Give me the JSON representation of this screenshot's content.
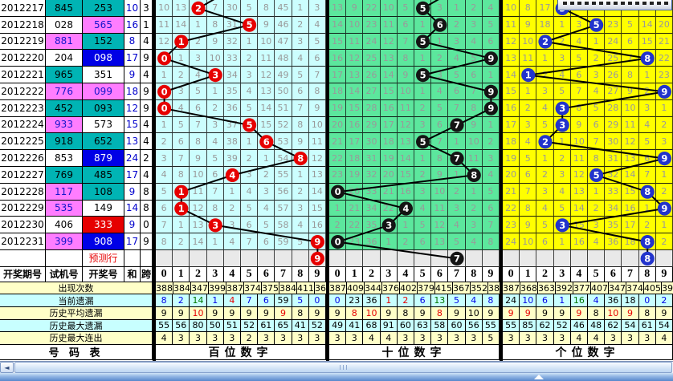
{
  "colors": {
    "teal": "#00B4B4",
    "magenta": "#FF7DFF",
    "blue_cell": "#0000E6",
    "red_cell": "#E60000",
    "grid_bgs": [
      "#CCFEFE",
      "#5CE79D",
      "#FFFF00"
    ],
    "ball_colors": [
      "#E60000",
      "#141414",
      "#2233CC"
    ],
    "stat_yellow": "#FFFFC8",
    "stat_cyan": "#C8FFFF",
    "sum_text": "#0000CC",
    "miss_blue": "#0000E6",
    "miss_red": "#E60000",
    "miss_green": "#007700"
  },
  "left_table": {
    "headers": [
      "开奖期号",
      "试机号",
      "开奖号",
      "和",
      "跨"
    ],
    "prediction_label": "预测行",
    "footer_label": "号 码 表",
    "rows": [
      {
        "period": "2012217",
        "test": "845",
        "test_bg": "teal",
        "test_fg": "black",
        "win": "253",
        "win_bg": "teal",
        "win_fg": "black",
        "sum": "10",
        "span": "3"
      },
      {
        "period": "2012218",
        "test": "028",
        "test_bg": "white",
        "test_fg": "black",
        "win": "565",
        "win_bg": "magenta",
        "win_fg": "blue",
        "sum": "16",
        "span": "1"
      },
      {
        "period": "2012219",
        "test": "881",
        "test_bg": "magenta",
        "test_fg": "blue",
        "win": "152",
        "win_bg": "teal",
        "win_fg": "black",
        "sum": "8",
        "span": "4"
      },
      {
        "period": "2012220",
        "test": "204",
        "test_bg": "white",
        "test_fg": "black",
        "win": "098",
        "win_bg": "blue",
        "win_fg": "white",
        "sum": "17",
        "span": "9"
      },
      {
        "period": "2012221",
        "test": "965",
        "test_bg": "teal",
        "test_fg": "black",
        "win": "351",
        "win_bg": "white",
        "win_fg": "black",
        "sum": "9",
        "span": "4"
      },
      {
        "period": "2012222",
        "test": "776",
        "test_bg": "magenta",
        "test_fg": "blue",
        "win": "099",
        "win_bg": "magenta",
        "win_fg": "blue",
        "sum": "18",
        "span": "9"
      },
      {
        "period": "2012223",
        "test": "452",
        "test_bg": "teal",
        "test_fg": "black",
        "win": "093",
        "win_bg": "teal",
        "win_fg": "black",
        "sum": "12",
        "span": "9"
      },
      {
        "period": "2012224",
        "test": "933",
        "test_bg": "magenta",
        "test_fg": "blue",
        "win": "573",
        "win_bg": "white",
        "win_fg": "black",
        "sum": "15",
        "span": "4"
      },
      {
        "period": "2012225",
        "test": "918",
        "test_bg": "teal",
        "test_fg": "black",
        "win": "652",
        "win_bg": "teal",
        "win_fg": "black",
        "sum": "13",
        "span": "4"
      },
      {
        "period": "2012226",
        "test": "853",
        "test_bg": "white",
        "test_fg": "black",
        "win": "879",
        "win_bg": "blue",
        "win_fg": "white",
        "sum": "24",
        "span": "2"
      },
      {
        "period": "2012227",
        "test": "769",
        "test_bg": "teal",
        "test_fg": "black",
        "win": "485",
        "win_bg": "teal",
        "win_fg": "black",
        "sum": "17",
        "span": "4"
      },
      {
        "period": "2012228",
        "test": "117",
        "test_bg": "magenta",
        "test_fg": "blue",
        "win": "108",
        "win_bg": "teal",
        "win_fg": "black",
        "sum": "9",
        "span": "8"
      },
      {
        "period": "2012229",
        "test": "535",
        "test_bg": "magenta",
        "test_fg": "blue",
        "win": "149",
        "win_bg": "white",
        "win_fg": "black",
        "sum": "14",
        "span": "8"
      },
      {
        "period": "2012230",
        "test": "406",
        "test_bg": "white",
        "test_fg": "black",
        "win": "333",
        "win_bg": "red",
        "win_fg": "white",
        "sum": "9",
        "span": "0"
      },
      {
        "period": "2012231",
        "test": "399",
        "test_bg": "magenta",
        "test_fg": "blue",
        "win": "908",
        "win_bg": "blue",
        "win_fg": "white",
        "sum": "17",
        "span": "9"
      }
    ]
  },
  "stats_labels": [
    "出现次数",
    "当前遗漏",
    "历史平均遗漏",
    "历史最大遗漏",
    "历史最大连出"
  ],
  "digit_headers": [
    "0",
    "1",
    "2",
    "3",
    "4",
    "5",
    "6",
    "7",
    "8",
    "9"
  ],
  "grids": [
    {
      "title": "百位数字",
      "rows": [
        {
          "c": [
            "10",
            "13",
            "2",
            "7",
            "30",
            "5",
            "8",
            "45",
            "1",
            "3"
          ],
          "b": 2
        },
        {
          "c": [
            "11",
            "14",
            "1",
            "8",
            "31",
            "5",
            "9",
            "46",
            "2",
            "4"
          ],
          "b": 5
        },
        {
          "c": [
            "12",
            "1",
            "2",
            "9",
            "32",
            "1",
            "10",
            "47",
            "3",
            "5"
          ],
          "b": 1
        },
        {
          "c": [
            "0",
            "1",
            "3",
            "10",
            "33",
            "2",
            "11",
            "48",
            "4",
            "6"
          ],
          "b": 0
        },
        {
          "c": [
            "1",
            "2",
            "4",
            "3",
            "34",
            "3",
            "12",
            "49",
            "5",
            "7"
          ],
          "b": 3
        },
        {
          "c": [
            "0",
            "3",
            "5",
            "1",
            "35",
            "4",
            "13",
            "50",
            "6",
            "8"
          ],
          "b": 0
        },
        {
          "c": [
            "0",
            "4",
            "6",
            "2",
            "36",
            "5",
            "14",
            "51",
            "7",
            "9"
          ],
          "b": 0
        },
        {
          "c": [
            "1",
            "5",
            "7",
            "3",
            "37",
            "5",
            "15",
            "52",
            "8",
            "10"
          ],
          "b": 5
        },
        {
          "c": [
            "2",
            "6",
            "8",
            "4",
            "38",
            "1",
            "6",
            "53",
            "9",
            "11"
          ],
          "b": 6
        },
        {
          "c": [
            "3",
            "7",
            "9",
            "5",
            "39",
            "2",
            "1",
            "54",
            "8",
            "12"
          ],
          "b": 8
        },
        {
          "c": [
            "4",
            "8",
            "10",
            "6",
            "4",
            "3",
            "2",
            "55",
            "1",
            "13"
          ],
          "b": 4
        },
        {
          "c": [
            "5",
            "1",
            "11",
            "7",
            "1",
            "4",
            "3",
            "56",
            "2",
            "14"
          ],
          "b": 1
        },
        {
          "c": [
            "6",
            "1",
            "12",
            "8",
            "2",
            "5",
            "4",
            "57",
            "3",
            "15"
          ],
          "b": 1
        },
        {
          "c": [
            "7",
            "1",
            "13",
            "3",
            "3",
            "6",
            "5",
            "58",
            "4",
            "16"
          ],
          "b": 3
        },
        {
          "c": [
            "8",
            "2",
            "14",
            "1",
            "4",
            "7",
            "6",
            "59",
            "5",
            "9"
          ],
          "b": 9
        }
      ],
      "pred_ball": 9,
      "stats": {
        "appear": [
          "388",
          "384",
          "347",
          "399",
          "387",
          "374",
          "375",
          "384",
          "411",
          "363"
        ],
        "current": {
          "v": [
            "8",
            "2",
            "14",
            "1",
            "4",
            "7",
            "6",
            "59",
            "5",
            "0"
          ],
          "c": [
            "b",
            "b",
            "g",
            "b",
            "r",
            "b",
            "b",
            "k",
            "b",
            "b"
          ]
        },
        "avg": {
          "v": [
            "9",
            "9",
            "10",
            "9",
            "9",
            "9",
            "9",
            "9",
            "8",
            "9"
          ],
          "c": [
            "k",
            "k",
            "r",
            "k",
            "k",
            "k",
            "k",
            "r",
            "k",
            "k"
          ]
        },
        "max_miss": [
          "55",
          "56",
          "80",
          "50",
          "51",
          "52",
          "61",
          "65",
          "41",
          "52"
        ],
        "max_streak": [
          "4",
          "3",
          "3",
          "3",
          "3",
          "2",
          "3",
          "3",
          "3",
          "3"
        ]
      }
    },
    {
      "title": "十位数字",
      "rows": [
        {
          "c": [
            "13",
            "9",
            "22",
            "10",
            "5",
            "5",
            "3",
            "1",
            "2",
            "4"
          ],
          "b": 5
        },
        {
          "c": [
            "14",
            "10",
            "23",
            "11",
            "6",
            "1",
            "6",
            "2",
            "3",
            "5"
          ],
          "b": 6
        },
        {
          "c": [
            "15",
            "11",
            "24",
            "12",
            "7",
            "5",
            "1",
            "3",
            "4",
            "6"
          ],
          "b": 5
        },
        {
          "c": [
            "16",
            "12",
            "25",
            "13",
            "8",
            "1",
            "2",
            "4",
            "5",
            "9"
          ],
          "b": 9
        },
        {
          "c": [
            "17",
            "13",
            "26",
            "14",
            "9",
            "5",
            "3",
            "5",
            "6",
            "1"
          ],
          "b": 5
        },
        {
          "c": [
            "18",
            "14",
            "27",
            "15",
            "10",
            "1",
            "4",
            "6",
            "7",
            "9"
          ],
          "b": 9
        },
        {
          "c": [
            "19",
            "15",
            "28",
            "16",
            "11",
            "2",
            "5",
            "7",
            "8",
            "9"
          ],
          "b": 9
        },
        {
          "c": [
            "20",
            "16",
            "29",
            "17",
            "12",
            "3",
            "6",
            "7",
            "9",
            "1"
          ],
          "b": 7
        },
        {
          "c": [
            "21",
            "17",
            "30",
            "18",
            "13",
            "5",
            "7",
            "1",
            "10",
            "2"
          ],
          "b": 5
        },
        {
          "c": [
            "22",
            "18",
            "31",
            "19",
            "14",
            "1",
            "8",
            "7",
            "11",
            "3"
          ],
          "b": 7
        },
        {
          "c": [
            "23",
            "19",
            "32",
            "20",
            "15",
            "2",
            "9",
            "1",
            "8",
            "4"
          ],
          "b": 8
        },
        {
          "c": [
            "0",
            "20",
            "33",
            "21",
            "16",
            "3",
            "10",
            "2",
            "1",
            "5"
          ],
          "b": 0
        },
        {
          "c": [
            "1",
            "21",
            "34",
            "22",
            "4",
            "4",
            "11",
            "3",
            "2",
            "6"
          ],
          "b": 4
        },
        {
          "c": [
            "2",
            "22",
            "35",
            "3",
            "1",
            "5",
            "12",
            "4",
            "3",
            "7"
          ],
          "b": 3
        },
        {
          "c": [
            "0",
            "23",
            "36",
            "1",
            "2",
            "6",
            "13",
            "5",
            "4",
            "8"
          ],
          "b": 0
        }
      ],
      "pred_ball": 7,
      "stats": {
        "appear": [
          "387",
          "409",
          "344",
          "376",
          "402",
          "379",
          "415",
          "367",
          "352",
          "381"
        ],
        "current": {
          "v": [
            "0",
            "23",
            "36",
            "1",
            "2",
            "6",
            "13",
            "5",
            "4",
            "8"
          ],
          "c": [
            "b",
            "k",
            "k",
            "r",
            "r",
            "b",
            "g",
            "b",
            "b",
            "b"
          ]
        },
        "avg": {
          "v": [
            "9",
            "8",
            "10",
            "9",
            "8",
            "9",
            "8",
            "9",
            "10",
            "9"
          ],
          "c": [
            "k",
            "r",
            "r",
            "k",
            "k",
            "k",
            "r",
            "k",
            "k",
            "k"
          ]
        },
        "max_miss": [
          "49",
          "41",
          "68",
          "91",
          "60",
          "63",
          "58",
          "60",
          "56",
          "55"
        ],
        "max_streak": [
          "3",
          "3",
          "4",
          "4",
          "3",
          "3",
          "3",
          "3",
          "3",
          "5"
        ]
      }
    },
    {
      "title": "个位数字",
      "rows": [
        {
          "c": [
            "10",
            "8",
            "17",
            "3",
            "2",
            "",
            "22",
            "4",
            "13",
            "19"
          ],
          "b": 3
        },
        {
          "c": [
            "11",
            "9",
            "18",
            "1",
            "3",
            "5",
            "23",
            "5",
            "14",
            "20"
          ],
          "b": 5
        },
        {
          "c": [
            "12",
            "10",
            "2",
            "2",
            "4",
            "1",
            "24",
            "6",
            "15",
            "21"
          ],
          "b": 2
        },
        {
          "c": [
            "13",
            "11",
            "1",
            "3",
            "5",
            "2",
            "25",
            "7",
            "8",
            "22"
          ],
          "b": 8
        },
        {
          "c": [
            "14",
            "1",
            "2",
            "4",
            "6",
            "3",
            "26",
            "8",
            "1",
            "23"
          ],
          "b": 1
        },
        {
          "c": [
            "15",
            "1",
            "3",
            "5",
            "7",
            "4",
            "27",
            "9",
            "2",
            "9"
          ],
          "b": 9
        },
        {
          "c": [
            "16",
            "2",
            "4",
            "3",
            "8",
            "5",
            "28",
            "10",
            "3",
            "1"
          ],
          "b": 3
        },
        {
          "c": [
            "17",
            "3",
            "5",
            "3",
            "9",
            "6",
            "29",
            "11",
            "4",
            "2"
          ],
          "b": 3
        },
        {
          "c": [
            "18",
            "4",
            "2",
            "1",
            "10",
            "7",
            "30",
            "12",
            "5",
            "3"
          ],
          "b": 2
        },
        {
          "c": [
            "19",
            "5",
            "1",
            "2",
            "11",
            "8",
            "31",
            "13",
            "6",
            "9"
          ],
          "b": 9
        },
        {
          "c": [
            "20",
            "6",
            "2",
            "3",
            "12",
            "5",
            "32",
            "14",
            "7",
            "1"
          ],
          "b": 5
        },
        {
          "c": [
            "21",
            "7",
            "3",
            "4",
            "13",
            "1",
            "33",
            "15",
            "8",
            "2"
          ],
          "b": 8
        },
        {
          "c": [
            "22",
            "8",
            "4",
            "5",
            "14",
            "2",
            "34",
            "16",
            "1",
            "9"
          ],
          "b": 9
        },
        {
          "c": [
            "23",
            "9",
            "5",
            "3",
            "15",
            "3",
            "35",
            "17",
            "2",
            "1"
          ],
          "b": 3
        },
        {
          "c": [
            "24",
            "10",
            "6",
            "1",
            "16",
            "4",
            "36",
            "18",
            "8",
            "2"
          ],
          "b": 8
        }
      ],
      "pred_ball": 8,
      "stats": {
        "appear": [
          "387",
          "368",
          "363",
          "392",
          "377",
          "407",
          "347",
          "374",
          "405",
          "392"
        ],
        "current": {
          "v": [
            "24",
            "10",
            "6",
            "1",
            "16",
            "4",
            "36",
            "18",
            "0",
            "2"
          ],
          "c": [
            "k",
            "b",
            "b",
            "b",
            "g",
            "b",
            "k",
            "k",
            "b",
            "b"
          ]
        },
        "avg": {
          "v": [
            "9",
            "9",
            "9",
            "9",
            "9",
            "8",
            "10",
            "9",
            "8",
            "9"
          ],
          "c": [
            "r",
            "r",
            "k",
            "k",
            "r",
            "k",
            "r",
            "r",
            "k",
            "k"
          ]
        },
        "max_miss": [
          "55",
          "85",
          "62",
          "52",
          "46",
          "48",
          "62",
          "54",
          "61",
          "54"
        ],
        "max_streak": [
          "3",
          "3",
          "3",
          "3",
          "4",
          "4",
          "3",
          "3",
          "3",
          "4"
        ]
      }
    }
  ],
  "scrollbar": {
    "left_arrow": "◄"
  }
}
